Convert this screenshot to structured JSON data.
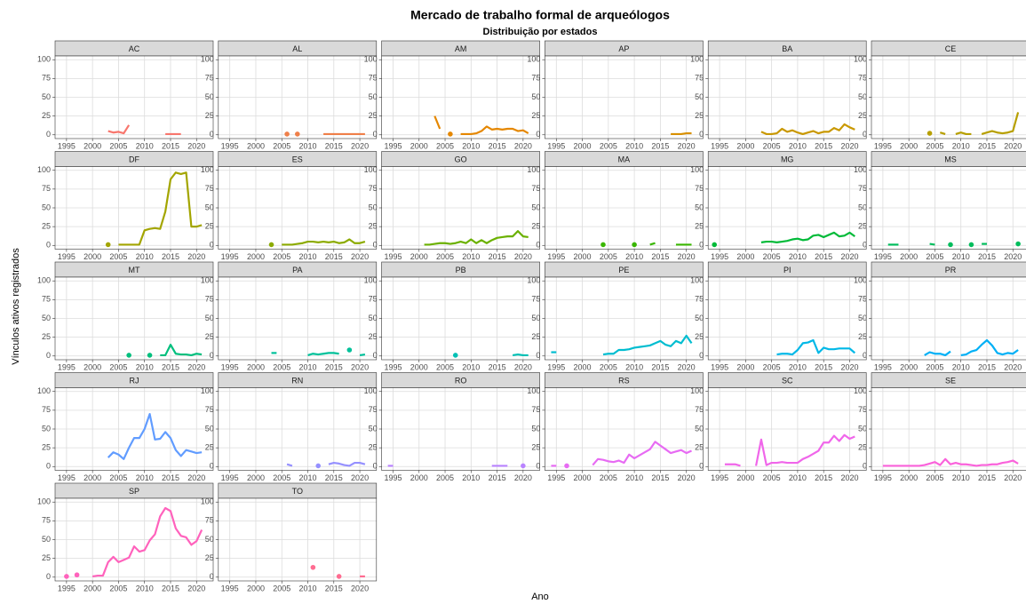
{
  "chart_data": {
    "type": "line",
    "title": "Mercado de trabalho formal de arqueólogos",
    "subtitle": "Distribuição por estados",
    "x_label": "Ano",
    "y_label": "Vínculos ativos registrados",
    "xlim": [
      1992.8,
      2023.2
    ],
    "xticks": [
      1995,
      2000,
      2005,
      2010,
      2015,
      2020
    ],
    "ylim": [
      -5,
      105
    ],
    "yticks": [
      0,
      25,
      50,
      75,
      100
    ],
    "grid": true,
    "x": [
      1994,
      1995,
      1996,
      1997,
      1998,
      1999,
      2000,
      2001,
      2002,
      2003,
      2004,
      2005,
      2006,
      2007,
      2008,
      2009,
      2010,
      2011,
      2012,
      2013,
      2014,
      2015,
      2016,
      2017,
      2018,
      2019,
      2020,
      2021
    ],
    "series": [
      {
        "name": "AC",
        "color": "#F8766D",
        "values": [
          null,
          null,
          null,
          null,
          null,
          null,
          null,
          null,
          null,
          5,
          3,
          4,
          2,
          13,
          null,
          null,
          null,
          null,
          null,
          null,
          1,
          1,
          1,
          1,
          null,
          null,
          null,
          null
        ]
      },
      {
        "name": "AL",
        "color": "#EF7F49",
        "values": [
          null,
          null,
          null,
          null,
          null,
          null,
          null,
          null,
          null,
          null,
          null,
          null,
          1,
          null,
          1,
          null,
          null,
          null,
          null,
          1,
          1,
          1,
          1,
          1,
          1,
          1,
          1,
          1
        ]
      },
      {
        "name": "AM",
        "color": "#E58700",
        "values": [
          null,
          null,
          null,
          null,
          null,
          null,
          null,
          null,
          null,
          25,
          8,
          null,
          1,
          null,
          1,
          1,
          1,
          2,
          5,
          11,
          7,
          8,
          7,
          8,
          8,
          5,
          6,
          2
        ]
      },
      {
        "name": "AP",
        "color": "#D89000",
        "values": [
          null,
          null,
          null,
          null,
          null,
          null,
          null,
          null,
          null,
          null,
          null,
          null,
          null,
          null,
          null,
          null,
          null,
          null,
          null,
          null,
          null,
          null,
          null,
          1,
          1,
          1,
          2,
          2
        ]
      },
      {
        "name": "BA",
        "color": "#C99800",
        "values": [
          null,
          null,
          null,
          null,
          null,
          null,
          null,
          null,
          null,
          4,
          1,
          1,
          2,
          8,
          4,
          6,
          3,
          1,
          3,
          5,
          2,
          4,
          4,
          9,
          6,
          14,
          10,
          7
        ]
      },
      {
        "name": "CE",
        "color": "#B79F00",
        "values": [
          null,
          null,
          null,
          null,
          null,
          null,
          null,
          null,
          null,
          null,
          2,
          null,
          3,
          1,
          null,
          1,
          3,
          1,
          1,
          null,
          1,
          3,
          5,
          3,
          2,
          3,
          5,
          30
        ]
      },
      {
        "name": "DF",
        "color": "#A3A500",
        "values": [
          null,
          null,
          null,
          null,
          null,
          null,
          null,
          null,
          null,
          1,
          null,
          1,
          1,
          1,
          1,
          1,
          20,
          22,
          23,
          22,
          45,
          88,
          97,
          95,
          97,
          25,
          25,
          27
        ]
      },
      {
        "name": "ES",
        "color": "#8CAB00",
        "values": [
          null,
          null,
          null,
          null,
          null,
          null,
          null,
          null,
          null,
          1,
          null,
          1,
          1,
          1,
          2,
          3,
          5,
          5,
          4,
          5,
          4,
          5,
          3,
          4,
          8,
          3,
          3,
          5
        ]
      },
      {
        "name": "GO",
        "color": "#6BB100",
        "values": [
          null,
          null,
          null,
          null,
          null,
          null,
          null,
          1,
          1,
          2,
          3,
          3,
          2,
          3,
          5,
          3,
          8,
          3,
          7,
          3,
          7,
          10,
          11,
          12,
          12,
          19,
          12,
          11
        ]
      },
      {
        "name": "MA",
        "color": "#39B600",
        "values": [
          null,
          null,
          null,
          null,
          null,
          null,
          null,
          null,
          null,
          null,
          1,
          null,
          null,
          null,
          null,
          null,
          1,
          null,
          null,
          1,
          3,
          null,
          null,
          null,
          1,
          1,
          1,
          1
        ]
      },
      {
        "name": "MG",
        "color": "#00BA38",
        "values": [
          1,
          null,
          null,
          null,
          null,
          null,
          null,
          null,
          null,
          4,
          5,
          5,
          4,
          5,
          6,
          8,
          9,
          7,
          8,
          13,
          14,
          11,
          14,
          17,
          12,
          13,
          17,
          12
        ]
      },
      {
        "name": "MS",
        "color": "#00BD5C",
        "values": [
          null,
          null,
          1,
          1,
          1,
          null,
          null,
          null,
          null,
          null,
          2,
          1,
          null,
          null,
          1,
          null,
          null,
          null,
          1,
          null,
          2,
          2,
          null,
          null,
          null,
          null,
          null,
          2
        ]
      },
      {
        "name": "MT",
        "color": "#00BF7D",
        "values": [
          null,
          null,
          null,
          null,
          null,
          null,
          null,
          null,
          null,
          null,
          null,
          null,
          null,
          1,
          null,
          null,
          null,
          1,
          null,
          1,
          1,
          15,
          3,
          2,
          2,
          1,
          3,
          2
        ]
      },
      {
        "name": "PA",
        "color": "#00C19A",
        "values": [
          null,
          null,
          null,
          null,
          null,
          null,
          null,
          null,
          null,
          4,
          4,
          null,
          null,
          null,
          null,
          null,
          1,
          3,
          2,
          3,
          4,
          4,
          3,
          null,
          8,
          null,
          1,
          2
        ]
      },
      {
        "name": "PB",
        "color": "#00C0B5",
        "values": [
          null,
          null,
          null,
          null,
          null,
          null,
          null,
          null,
          null,
          null,
          null,
          null,
          null,
          1,
          null,
          null,
          null,
          null,
          null,
          null,
          null,
          null,
          null,
          null,
          1,
          2,
          1,
          1
        ]
      },
      {
        "name": "PE",
        "color": "#00BDD0",
        "values": [
          5,
          5,
          null,
          null,
          null,
          null,
          null,
          null,
          null,
          null,
          2,
          3,
          3,
          8,
          8,
          9,
          11,
          12,
          13,
          14,
          17,
          20,
          15,
          13,
          20,
          17,
          27,
          17
        ]
      },
      {
        "name": "PI",
        "color": "#00B8E7",
        "values": [
          null,
          null,
          null,
          null,
          null,
          null,
          null,
          null,
          null,
          null,
          null,
          null,
          2,
          3,
          3,
          2,
          8,
          17,
          18,
          21,
          4,
          11,
          9,
          9,
          10,
          10,
          10,
          4
        ]
      },
      {
        "name": "PR",
        "color": "#00B0F6",
        "values": [
          null,
          null,
          null,
          null,
          null,
          null,
          null,
          null,
          null,
          1,
          5,
          3,
          3,
          1,
          6,
          null,
          1,
          2,
          6,
          8,
          15,
          21,
          14,
          4,
          2,
          4,
          3,
          8
        ]
      },
      {
        "name": "RJ",
        "color": "#619CFF",
        "values": [
          null,
          null,
          null,
          null,
          null,
          null,
          null,
          null,
          null,
          12,
          19,
          16,
          10,
          25,
          38,
          38,
          50,
          70,
          36,
          37,
          46,
          38,
          22,
          14,
          22,
          20,
          18,
          19
        ]
      },
      {
        "name": "RN",
        "color": "#9590FF",
        "values": [
          null,
          null,
          null,
          null,
          null,
          null,
          null,
          null,
          null,
          null,
          null,
          null,
          3,
          1,
          null,
          null,
          null,
          null,
          1,
          null,
          3,
          5,
          4,
          2,
          1,
          5,
          5,
          3
        ]
      },
      {
        "name": "RO",
        "color": "#B983FF",
        "values": [
          1,
          1,
          null,
          null,
          null,
          null,
          null,
          null,
          null,
          null,
          null,
          null,
          null,
          null,
          null,
          null,
          null,
          null,
          null,
          null,
          1,
          1,
          1,
          1,
          null,
          null,
          1,
          null
        ]
      },
      {
        "name": "RS",
        "color": "#E76BF3",
        "values": [
          1,
          1,
          null,
          1,
          null,
          null,
          null,
          null,
          2,
          10,
          9,
          7,
          6,
          8,
          5,
          16,
          11,
          15,
          19,
          23,
          33,
          28,
          23,
          18,
          20,
          22,
          18,
          21
        ]
      },
      {
        "name": "SC",
        "color": "#F066EA",
        "values": [
          null,
          null,
          3,
          3,
          3,
          1,
          null,
          null,
          1,
          36,
          2,
          5,
          5,
          6,
          5,
          5,
          5,
          10,
          13,
          17,
          21,
          32,
          32,
          41,
          34,
          42,
          37,
          40
        ]
      },
      {
        "name": "SE",
        "color": "#FA62DB",
        "values": [
          null,
          1,
          1,
          1,
          1,
          1,
          1,
          1,
          1,
          2,
          4,
          6,
          2,
          10,
          3,
          5,
          3,
          3,
          2,
          1,
          2,
          2,
          3,
          3,
          5,
          6,
          8,
          4
        ]
      },
      {
        "name": "SP",
        "color": "#FF62BC",
        "values": [
          null,
          1,
          null,
          3,
          null,
          null,
          1,
          2,
          2,
          20,
          27,
          20,
          23,
          26,
          41,
          34,
          36,
          49,
          57,
          81,
          92,
          88,
          65,
          55,
          53,
          43,
          48,
          63
        ]
      },
      {
        "name": "TO",
        "color": "#FF6C91",
        "values": [
          null,
          null,
          null,
          null,
          null,
          null,
          null,
          null,
          null,
          null,
          null,
          null,
          null,
          null,
          null,
          null,
          null,
          13,
          null,
          null,
          null,
          null,
          1,
          null,
          null,
          null,
          1,
          1
        ]
      }
    ]
  }
}
